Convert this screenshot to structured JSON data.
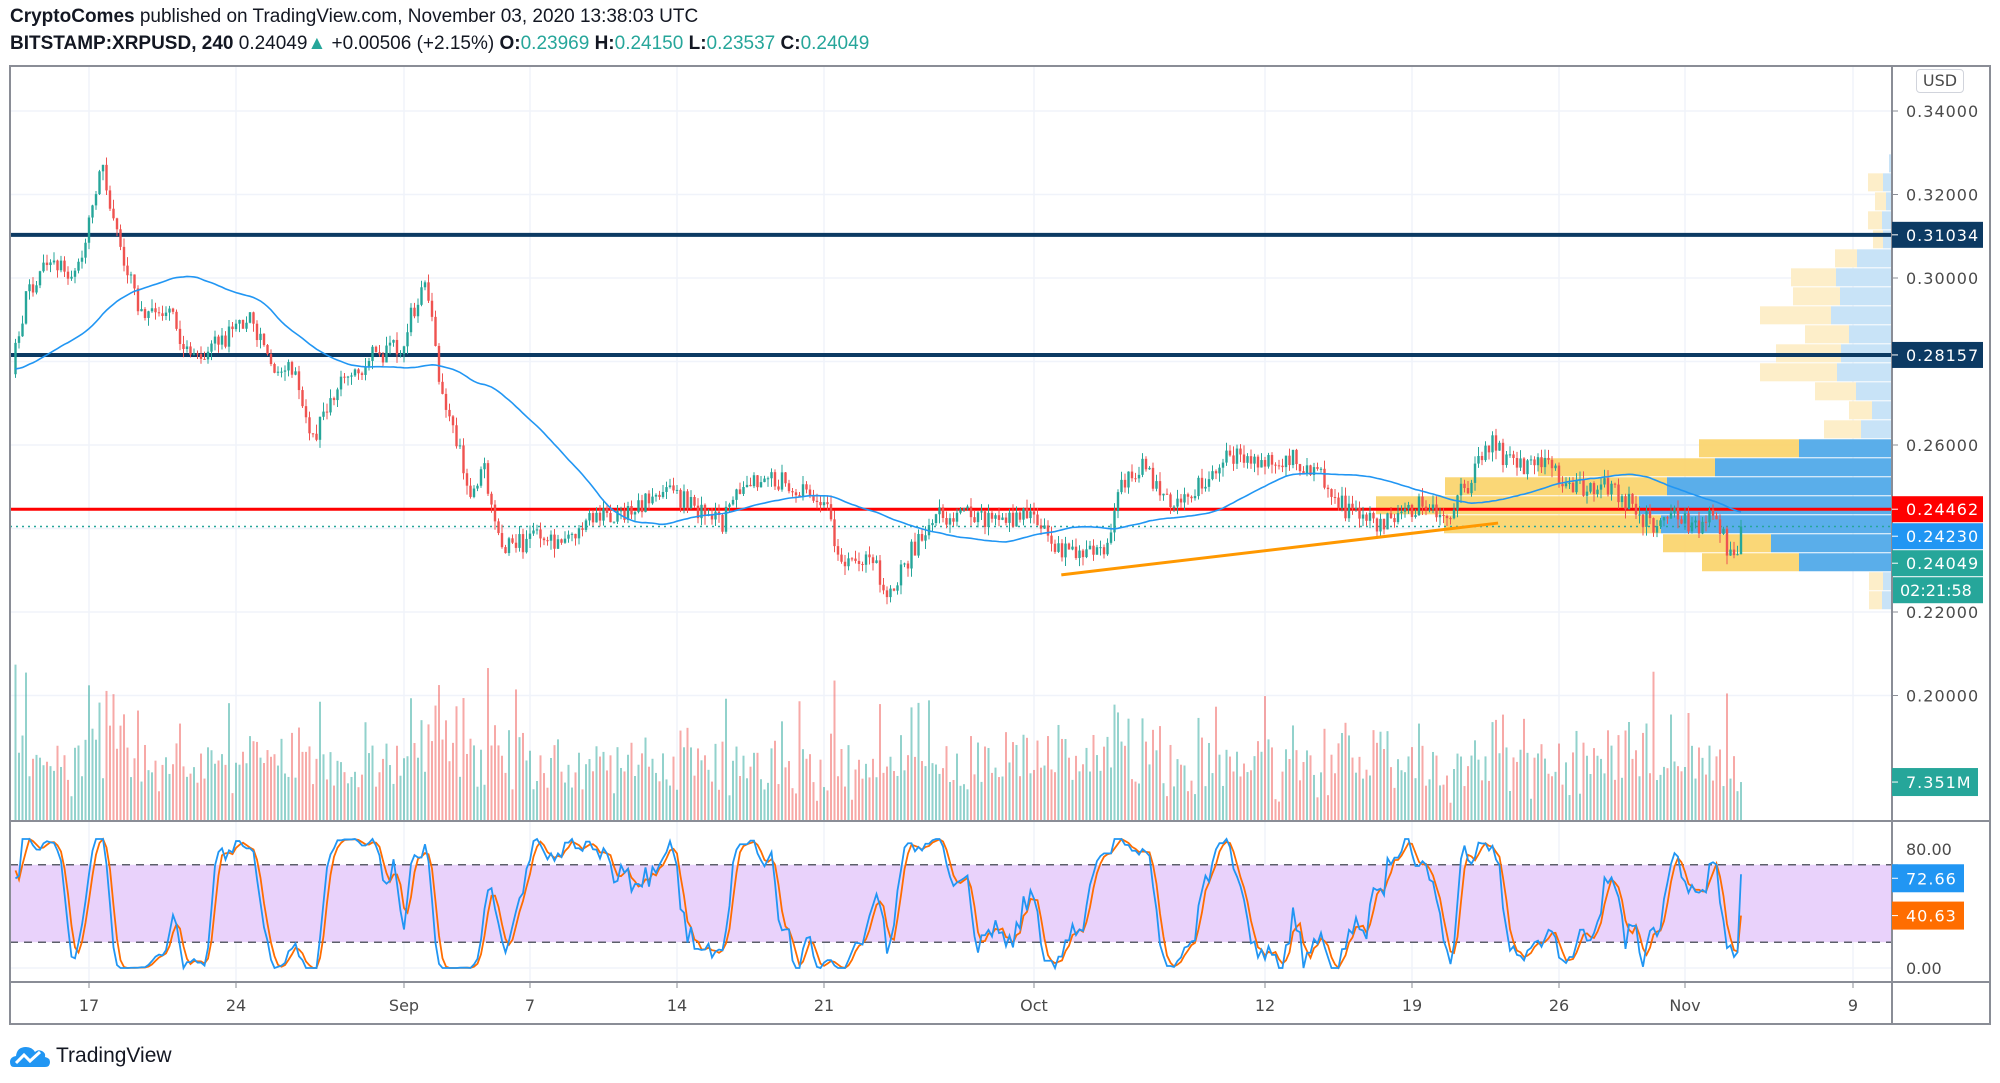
{
  "header": {
    "author": "CryptoComes",
    "published": "published on TradingView.com, November 03, 2020 13:38:03 UTC",
    "symbol": "BITSTAMP:XRPUSD, 240",
    "last": "0.24049",
    "change": "+0.00506 (+2.15%)",
    "o_label": "O:",
    "o": "0.23969",
    "h_label": "H:",
    "h": "0.24150",
    "l_label": "L:",
    "l": "0.23537",
    "c_label": "C:",
    "c": "0.24049"
  },
  "currency_button": "USD",
  "footer": {
    "brand": "TradingView"
  },
  "colors": {
    "up": "#26a69a",
    "down": "#ef5350",
    "ma": "#2196f3",
    "k": "#2196f3",
    "d": "#ff6d00",
    "navy": "#0c3a63",
    "red": "#ff0000",
    "trend": "#ff9800",
    "vp_up": "#5aaeea",
    "vp_down": "#fad46b"
  },
  "chart_data": {
    "type": "candlestick",
    "interval": "240",
    "time_origin": "2020-08-13",
    "price_ticks": [
      "0.34000",
      "0.32000",
      "0.30000",
      "0.26000",
      "0.22000",
      "0.20000"
    ],
    "price_tick_values": [
      0.34,
      0.32,
      0.3,
      0.26,
      0.22,
      0.2
    ],
    "time_ticks": [
      {
        "label": "17",
        "day": 4
      },
      {
        "label": "24",
        "day": 11
      },
      {
        "label": "Sep",
        "day": 19
      },
      {
        "label": "7",
        "day": 25
      },
      {
        "label": "14",
        "day": 32
      },
      {
        "label": "21",
        "day": 39
      },
      {
        "label": "Oct",
        "day": 49
      },
      {
        "label": "12",
        "day": 60
      },
      {
        "label": "19",
        "day": 67
      },
      {
        "label": "26",
        "day": 74
      },
      {
        "label": "Nov",
        "day": 80
      },
      {
        "label": "9",
        "day": 88
      }
    ],
    "price_path": [
      [
        0.35,
        0.278
      ],
      [
        1.0,
        0.296
      ],
      [
        1.9,
        0.304
      ],
      [
        3.4,
        0.301
      ],
      [
        4.6,
        0.327
      ],
      [
        5.2,
        0.313
      ],
      [
        5.8,
        0.301
      ],
      [
        6.7,
        0.29
      ],
      [
        7.7,
        0.293
      ],
      [
        8.9,
        0.28
      ],
      [
        10.1,
        0.284
      ],
      [
        11.6,
        0.29
      ],
      [
        12.8,
        0.278
      ],
      [
        13.7,
        0.278
      ],
      [
        14.6,
        0.261
      ],
      [
        15.6,
        0.272
      ],
      [
        17.4,
        0.281
      ],
      [
        18.9,
        0.284
      ],
      [
        19.5,
        0.293
      ],
      [
        20.0,
        0.301
      ],
      [
        20.7,
        0.275
      ],
      [
        21.6,
        0.26
      ],
      [
        22.2,
        0.247
      ],
      [
        22.8,
        0.254
      ],
      [
        23.8,
        0.235
      ],
      [
        25.3,
        0.238
      ],
      [
        26.5,
        0.235
      ],
      [
        28.3,
        0.244
      ],
      [
        30.1,
        0.244
      ],
      [
        31.1,
        0.25
      ],
      [
        32.6,
        0.246
      ],
      [
        34.1,
        0.241
      ],
      [
        35.3,
        0.251
      ],
      [
        36.2,
        0.251
      ],
      [
        37.4,
        0.251
      ],
      [
        39.0,
        0.246
      ],
      [
        39.9,
        0.232
      ],
      [
        41.4,
        0.232
      ],
      [
        42.1,
        0.223
      ],
      [
        43.2,
        0.235
      ],
      [
        44.4,
        0.243
      ],
      [
        46.0,
        0.244
      ],
      [
        47.5,
        0.241
      ],
      [
        49.0,
        0.243
      ],
      [
        50.2,
        0.235
      ],
      [
        51.4,
        0.234
      ],
      [
        52.5,
        0.235
      ],
      [
        52.9,
        0.249
      ],
      [
        54.2,
        0.255
      ],
      [
        55.4,
        0.246
      ],
      [
        56.6,
        0.249
      ],
      [
        58.1,
        0.257
      ],
      [
        59.6,
        0.257
      ],
      [
        61.1,
        0.257
      ],
      [
        62.4,
        0.254
      ],
      [
        63.3,
        0.247
      ],
      [
        64.8,
        0.241
      ],
      [
        66.3,
        0.243
      ],
      [
        67.5,
        0.246
      ],
      [
        68.7,
        0.244
      ],
      [
        69.7,
        0.251
      ],
      [
        70.6,
        0.261
      ],
      [
        71.8,
        0.255
      ],
      [
        73.3,
        0.255
      ],
      [
        74.8,
        0.25
      ],
      [
        76.0,
        0.251
      ],
      [
        77.3,
        0.246
      ],
      [
        78.5,
        0.24
      ],
      [
        79.4,
        0.243
      ],
      [
        80.6,
        0.241
      ],
      [
        81.5,
        0.243
      ],
      [
        82.3,
        0.231
      ],
      [
        82.7,
        0.2405
      ]
    ],
    "ma_period": 50,
    "horizontal_lines": [
      {
        "price": 0.31034,
        "label": "0.31034",
        "color": "navy"
      },
      {
        "price": 0.28157,
        "label": "0.28157",
        "color": "navy"
      },
      {
        "price": 0.24462,
        "label": "0.24462",
        "color": "red"
      }
    ],
    "trendline": {
      "from": [
        50.3,
        0.2289
      ],
      "to": [
        71.1,
        0.2413
      ]
    },
    "last_price": {
      "price": 0.24049,
      "label": "0.24049",
      "countdown": "02:21:58"
    },
    "ma_value": {
      "price": 0.2423,
      "label": "0.24230"
    },
    "volume": {
      "last": 7.351,
      "label": "7.351M"
    },
    "volume_profile_full": {
      "row_top_price": 0.3295,
      "row_step": 0.00455,
      "rows": [
        [
          0,
          3
        ],
        [
          15,
          9
        ],
        [
          11,
          6
        ],
        [
          14,
          10
        ],
        [
          10,
          9
        ],
        [
          22,
          35
        ],
        [
          45,
          56
        ],
        [
          47,
          52
        ],
        [
          71,
          61
        ],
        [
          44,
          43
        ],
        [
          65,
          51
        ],
        [
          77,
          55
        ],
        [
          41,
          36
        ],
        [
          23,
          20
        ],
        [
          37,
          31
        ],
        null,
        null,
        null,
        null,
        null,
        null,
        null,
        [
          14,
          9
        ],
        [
          13,
          10
        ]
      ]
    },
    "volume_profile_session": {
      "start_day": 68.5,
      "first_row": 15,
      "rows": [
        [
          100,
          93
        ],
        [
          177,
          177
        ],
        [
          222,
          225
        ],
        [
          263,
          253
        ],
        [
          217,
          231
        ],
        [
          108,
          121
        ],
        [
          97,
          93
        ]
      ]
    },
    "stoch_rsi": {
      "upper": 80,
      "lower": 20,
      "k": 72.66,
      "d": 40.63,
      "k_label": "72.66",
      "d_label": "40.63",
      "ticks": [
        "80.00",
        "0.00"
      ]
    }
  }
}
